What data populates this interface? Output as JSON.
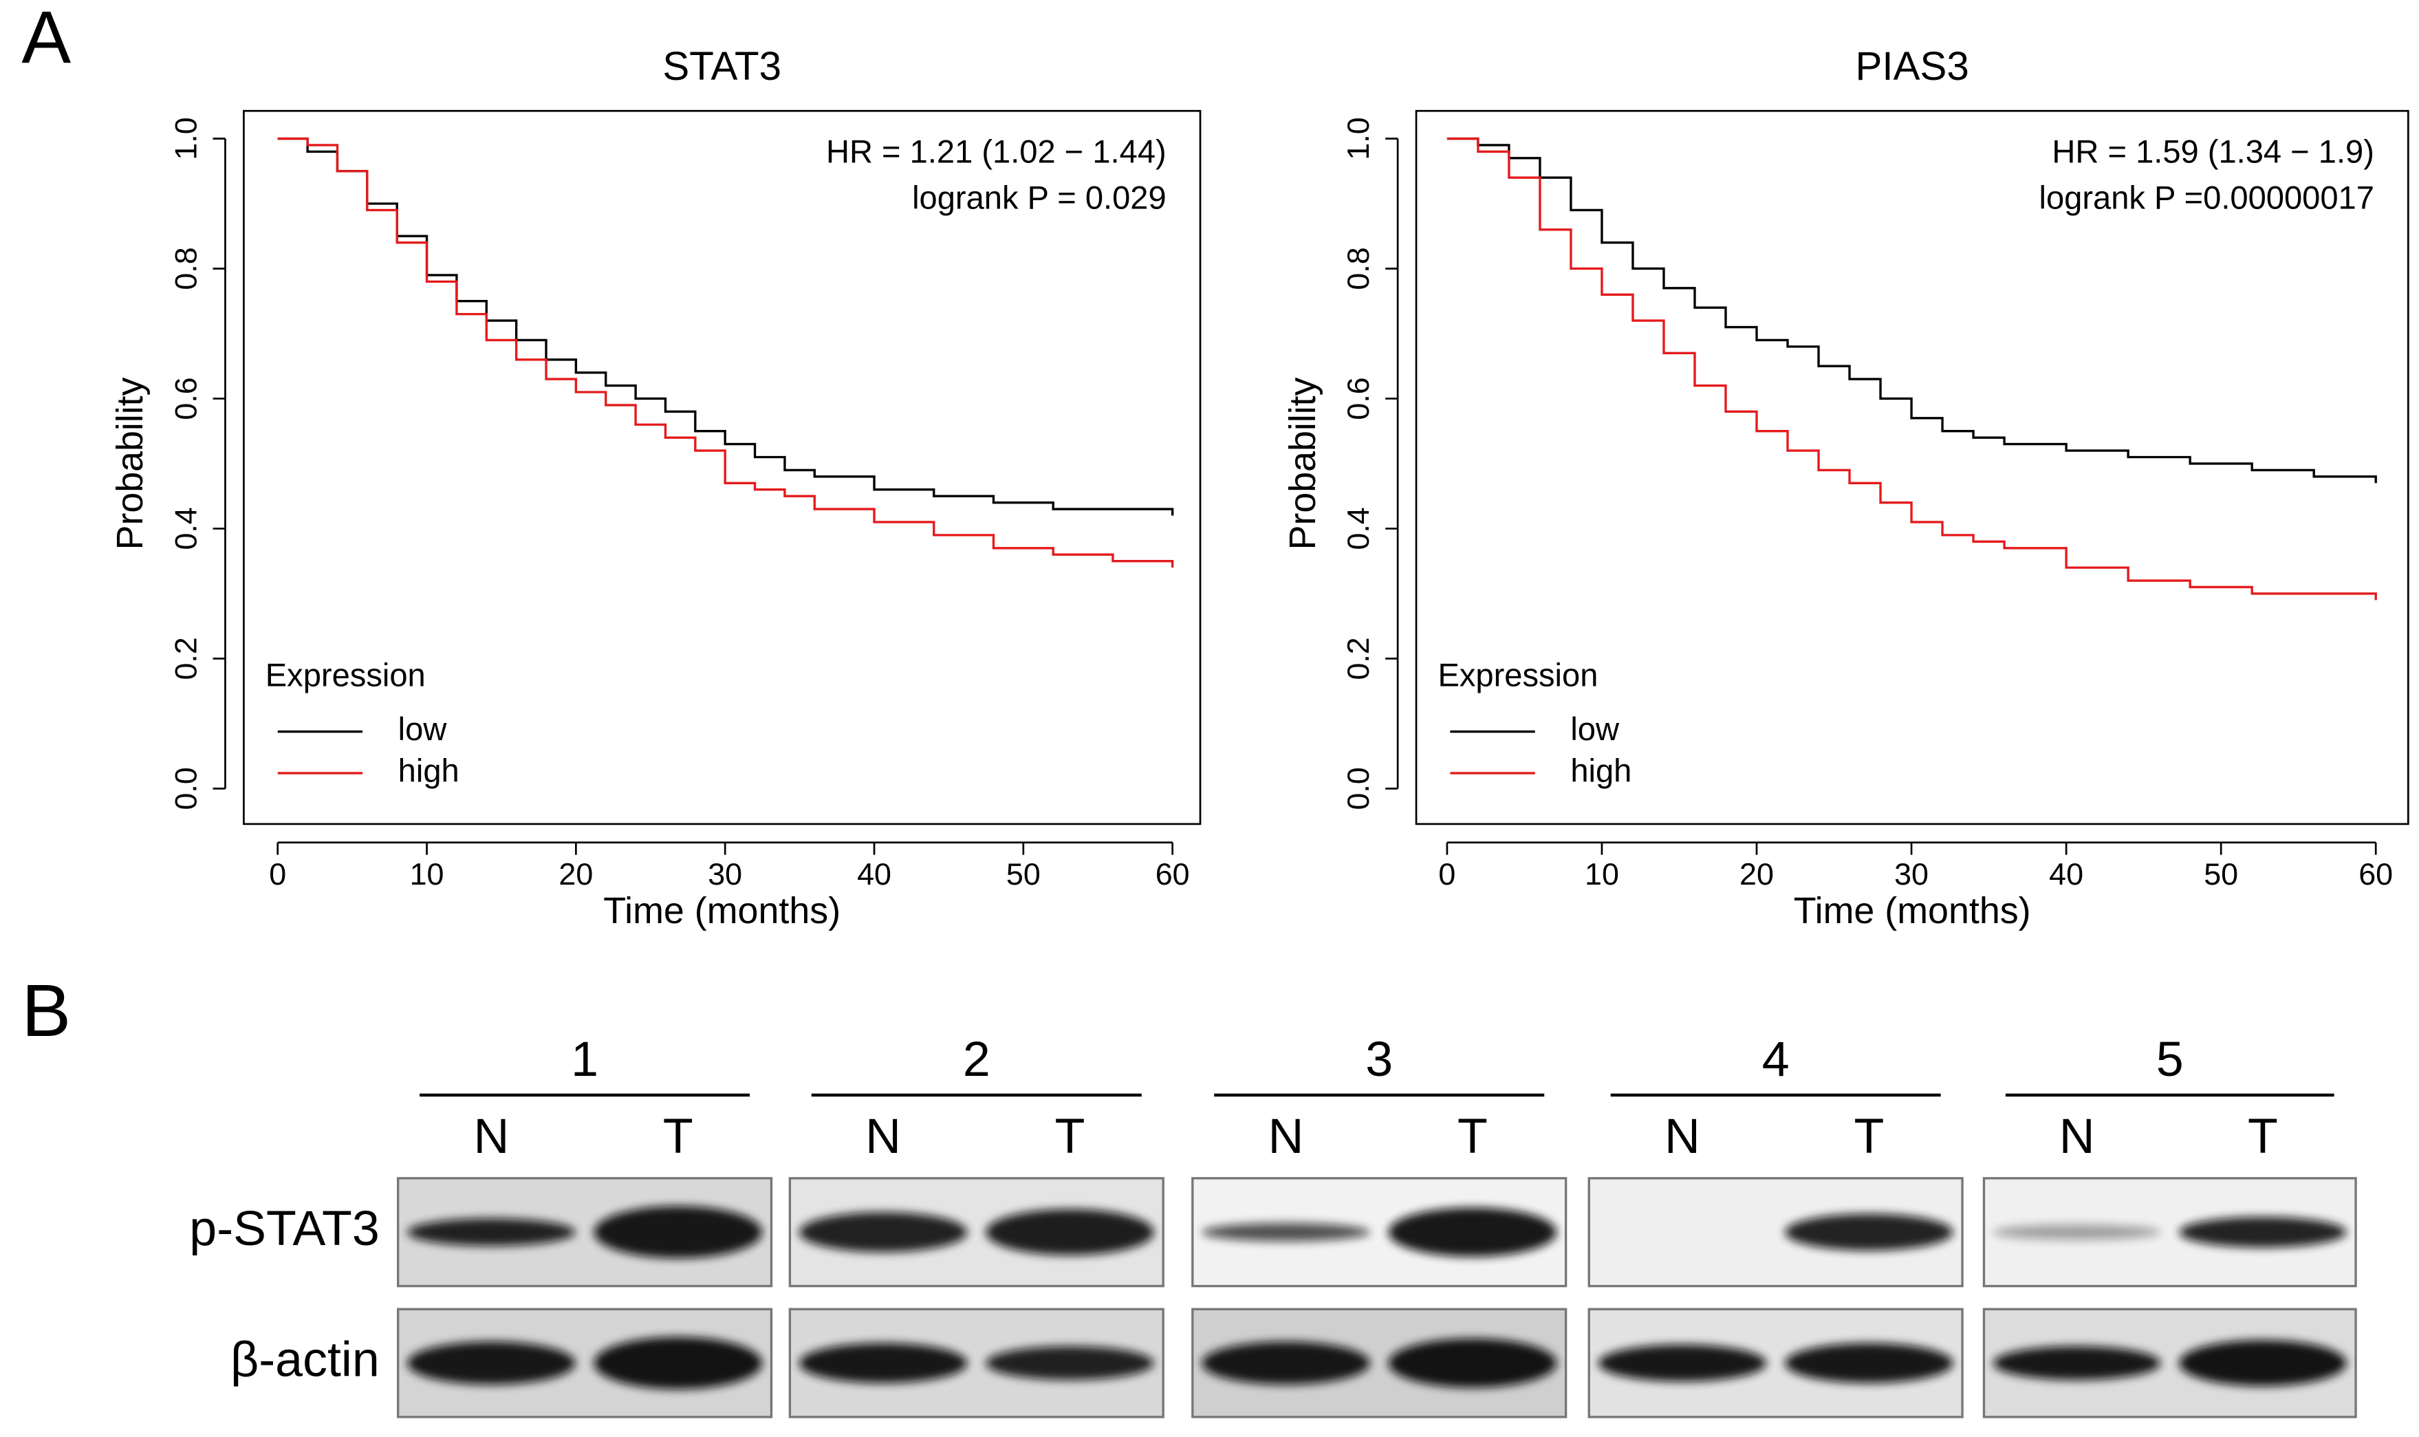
{
  "panel_labels": [
    "A",
    "B"
  ],
  "chart_data": [
    {
      "type": "line",
      "title": "STAT3",
      "x_label": "Time (months)",
      "y_label": "Probability",
      "annotations": [
        "HR = 1.21 (1.02 − 1.44)",
        "logrank P = 0.029"
      ],
      "legend_title": "Expression",
      "legend_position": "bottomleft",
      "x": [
        0,
        2,
        4,
        6,
        8,
        10,
        12,
        14,
        16,
        18,
        20,
        22,
        24,
        26,
        28,
        30,
        32,
        34,
        36,
        40,
        44,
        48,
        52,
        56,
        60
      ],
      "series": [
        {
          "name": "low",
          "color": "#000000",
          "values": [
            1.0,
            0.98,
            0.95,
            0.9,
            0.85,
            0.79,
            0.75,
            0.72,
            0.69,
            0.66,
            0.64,
            0.62,
            0.6,
            0.58,
            0.55,
            0.53,
            0.51,
            0.49,
            0.48,
            0.46,
            0.45,
            0.44,
            0.43,
            0.43,
            0.42
          ]
        },
        {
          "name": "high",
          "color": "#e41a1c",
          "values": [
            1.0,
            0.99,
            0.95,
            0.89,
            0.84,
            0.78,
            0.73,
            0.69,
            0.66,
            0.63,
            0.61,
            0.59,
            0.56,
            0.54,
            0.52,
            0.47,
            0.46,
            0.45,
            0.43,
            0.41,
            0.39,
            0.37,
            0.36,
            0.35,
            0.34
          ]
        }
      ],
      "xlim": [
        0,
        60
      ],
      "xticks": [
        0,
        10,
        20,
        30,
        40,
        50,
        60
      ],
      "ylim": [
        0,
        1
      ],
      "yticks": [
        {
          "value": 0,
          "label": "0.0"
        },
        {
          "value": 0.2,
          "label": "0.2"
        },
        {
          "value": 0.4,
          "label": "0.4"
        },
        {
          "value": 0.6,
          "label": "0.6"
        },
        {
          "value": 0.8,
          "label": "0.8"
        },
        {
          "value": 1,
          "label": "1.0"
        }
      ]
    },
    {
      "type": "line",
      "title": "PIAS3",
      "x_label": "Time (months)",
      "y_label": "Probability",
      "annotations": [
        "HR = 1.59 (1.34 − 1.9)",
        "logrank P =0.00000017"
      ],
      "legend_title": "Expression",
      "legend_position": "bottomleft",
      "x": [
        0,
        2,
        4,
        6,
        8,
        10,
        12,
        14,
        16,
        18,
        20,
        22,
        24,
        26,
        28,
        30,
        32,
        34,
        36,
        40,
        44,
        48,
        52,
        56,
        60
      ],
      "series": [
        {
          "name": "low",
          "color": "#000000",
          "values": [
            1.0,
            0.99,
            0.97,
            0.94,
            0.89,
            0.84,
            0.8,
            0.77,
            0.74,
            0.71,
            0.69,
            0.68,
            0.65,
            0.63,
            0.6,
            0.57,
            0.55,
            0.54,
            0.53,
            0.52,
            0.51,
            0.5,
            0.49,
            0.48,
            0.47
          ]
        },
        {
          "name": "high",
          "color": "#e41a1c",
          "values": [
            1.0,
            0.98,
            0.94,
            0.86,
            0.8,
            0.76,
            0.72,
            0.67,
            0.62,
            0.58,
            0.55,
            0.52,
            0.49,
            0.47,
            0.44,
            0.41,
            0.39,
            0.38,
            0.37,
            0.34,
            0.32,
            0.31,
            0.3,
            0.3,
            0.29
          ]
        }
      ],
      "xlim": [
        0,
        60
      ],
      "xticks": [
        0,
        10,
        20,
        30,
        40,
        50,
        60
      ],
      "ylim": [
        0,
        1
      ],
      "yticks": [
        {
          "value": 0,
          "label": "0.0"
        },
        {
          "value": 0.2,
          "label": "0.2"
        },
        {
          "value": 0.4,
          "label": "0.4"
        },
        {
          "value": 0.6,
          "label": "0.6"
        },
        {
          "value": 0.8,
          "label": "0.8"
        },
        {
          "value": 1,
          "label": "1.0"
        }
      ]
    }
  ],
  "western_blot": {
    "groups": [
      {
        "label": "1",
        "lanes": [
          "N",
          "T"
        ]
      },
      {
        "label": "2",
        "lanes": [
          "N",
          "T"
        ]
      },
      {
        "label": "3",
        "lanes": [
          "N",
          "T"
        ]
      },
      {
        "label": "4",
        "lanes": [
          "N",
          "T"
        ]
      },
      {
        "label": "5",
        "lanes": [
          "N",
          "T"
        ]
      }
    ],
    "rows": [
      "p-STAT3",
      "β-actin"
    ]
  }
}
